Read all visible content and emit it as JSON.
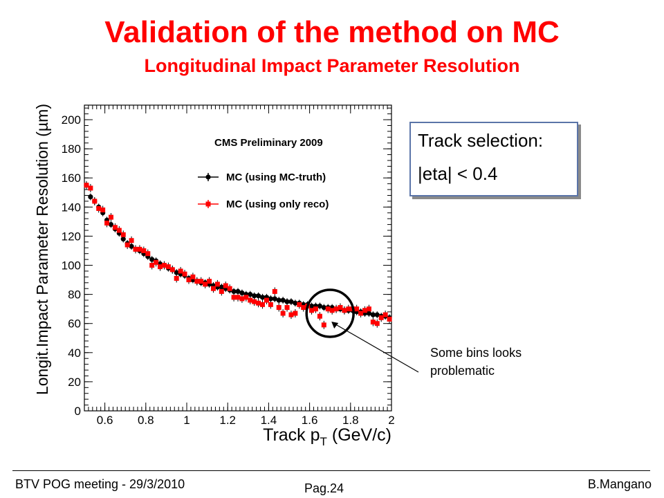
{
  "page": {
    "title": "Validation of the method on MC",
    "subtitle": "Longitudinal Impact Parameter Resolution",
    "selection_box": {
      "line1": "Track selection:",
      "line2": "|eta| < 0.4"
    },
    "note": "Some bins looks\nproblematic",
    "footer": {
      "left": "BTV POG meeting - 29/3/2010",
      "center": "Pag.24",
      "right": "B.Mangano"
    }
  },
  "chart_data": {
    "type": "scatter",
    "title": "CMS Preliminary 2009",
    "xlabel": "Track p",
    "xlabel_sub": "T",
    "xlabel_unit": " (GeV/c)",
    "ylabel": "Longit.Impact Parameter Resolution (µm)",
    "xlim": [
      0.5,
      2.0
    ],
    "ylim": [
      0,
      210
    ],
    "xticks": [
      "0.6",
      "0.8",
      "1",
      "1.2",
      "1.4",
      "1.6",
      "1.8",
      "2"
    ],
    "xtick_values": [
      0.6,
      0.8,
      1.0,
      1.2,
      1.4,
      1.6,
      1.8,
      2.0
    ],
    "yticks": [
      "0",
      "20",
      "40",
      "60",
      "80",
      "100",
      "120",
      "140",
      "160",
      "180",
      "200"
    ],
    "ytick_values": [
      0,
      20,
      40,
      60,
      80,
      100,
      120,
      140,
      160,
      180,
      200
    ],
    "grid": false,
    "legend_position": "top-right",
    "colors": {
      "mc_truth": "#000000",
      "reco": "#ff0000",
      "annotation": "#000000"
    },
    "x": [
      0.51,
      0.53,
      0.55,
      0.57,
      0.59,
      0.61,
      0.63,
      0.65,
      0.67,
      0.69,
      0.71,
      0.73,
      0.75,
      0.77,
      0.79,
      0.81,
      0.83,
      0.85,
      0.87,
      0.89,
      0.91,
      0.93,
      0.95,
      0.97,
      0.99,
      1.01,
      1.03,
      1.05,
      1.07,
      1.09,
      1.11,
      1.13,
      1.15,
      1.17,
      1.19,
      1.21,
      1.23,
      1.25,
      1.27,
      1.29,
      1.31,
      1.33,
      1.35,
      1.37,
      1.39,
      1.41,
      1.43,
      1.45,
      1.47,
      1.49,
      1.51,
      1.53,
      1.55,
      1.57,
      1.59,
      1.61,
      1.63,
      1.65,
      1.67,
      1.69,
      1.71,
      1.73,
      1.75,
      1.77,
      1.79,
      1.81,
      1.83,
      1.85,
      1.87,
      1.89,
      1.91,
      1.93,
      1.95,
      1.97,
      1.99
    ],
    "series": [
      {
        "name": "MC (using MC-truth)",
        "marker": "circle",
        "values": [
          155,
          147,
          144,
          140,
          136,
          131,
          128,
          125,
          122,
          118,
          115,
          113,
          111,
          110,
          108,
          106,
          104,
          103,
          101,
          100,
          98,
          97,
          95,
          94,
          93,
          91,
          90,
          89,
          88,
          88,
          87,
          86,
          85,
          85,
          84,
          83,
          82,
          82,
          81,
          80,
          80,
          79,
          79,
          78,
          78,
          77,
          77,
          76,
          76,
          75,
          75,
          74,
          74,
          73,
          73,
          72,
          72,
          72,
          71,
          71,
          71,
          70,
          70,
          69,
          69,
          69,
          68,
          68,
          67,
          67,
          66,
          66,
          65,
          65,
          64
        ]
      },
      {
        "name": "MC (using only reco)",
        "marker": "square",
        "values": [
          155,
          153,
          144,
          139,
          138,
          129,
          133,
          126,
          124,
          121,
          114,
          117,
          111,
          111,
          110,
          108,
          100,
          102,
          99,
          100,
          99,
          97,
          91,
          96,
          94,
          90,
          92,
          89,
          89,
          87,
          89,
          84,
          87,
          82,
          86,
          84,
          78,
          78,
          77,
          78,
          76,
          75,
          74,
          73,
          76,
          73,
          82,
          71,
          67,
          71,
          66,
          67,
          73,
          71,
          72,
          69,
          70,
          65,
          59,
          70,
          69,
          70,
          71,
          69,
          70,
          70,
          70,
          67,
          69,
          70,
          61,
          60,
          64,
          66,
          63
        ]
      }
    ],
    "annotation": "Some bins looks problematic",
    "circled_region": {
      "x": 1.7,
      "y": 67
    }
  }
}
